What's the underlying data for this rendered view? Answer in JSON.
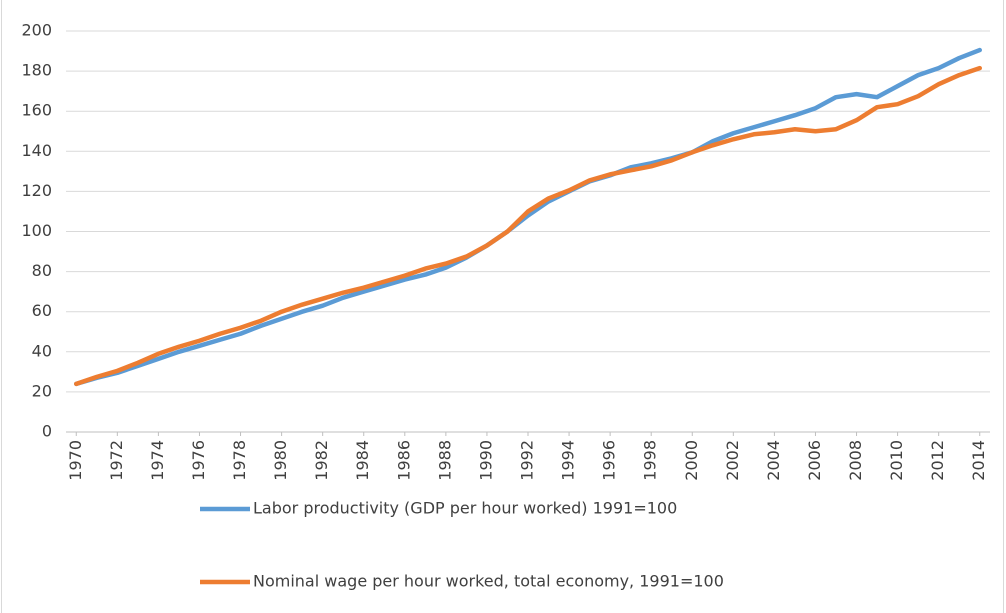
{
  "chart_data": {
    "type": "line",
    "x": [
      1970,
      1971,
      1972,
      1973,
      1974,
      1975,
      1976,
      1977,
      1978,
      1979,
      1980,
      1981,
      1982,
      1983,
      1984,
      1985,
      1986,
      1987,
      1988,
      1989,
      1990,
      1991,
      1992,
      1993,
      1994,
      1995,
      1996,
      1997,
      1998,
      1999,
      2000,
      2001,
      2002,
      2003,
      2004,
      2005,
      2006,
      2007,
      2008,
      2009,
      2010,
      2011,
      2012,
      2013,
      2014
    ],
    "xlim": [
      1969.5,
      2014.5
    ],
    "xticks": [
      1970,
      1972,
      1974,
      1976,
      1978,
      1980,
      1982,
      1984,
      1986,
      1988,
      1990,
      1992,
      1994,
      1996,
      1998,
      2000,
      2002,
      2004,
      2006,
      2008,
      2010,
      2012,
      2014
    ],
    "ylim": [
      0,
      200
    ],
    "yticks": [
      0,
      20,
      40,
      60,
      80,
      100,
      120,
      140,
      160,
      180,
      200
    ],
    "grid": true,
    "legend": "bottom",
    "series": [
      {
        "name": "Labor productivity (GDP per hour worked) 1991=100",
        "color": "#5b9bd5",
        "values": [
          24,
          27,
          29.5,
          33,
          36.5,
          40,
          43,
          46,
          49,
          53,
          56.5,
          60,
          63,
          67,
          70,
          73,
          76,
          78.5,
          82,
          87,
          93,
          100,
          108,
          115,
          120,
          125,
          128,
          132,
          134,
          136.5,
          139.5,
          145,
          149,
          152,
          155,
          158,
          161.5,
          167,
          168.5,
          167,
          172.5,
          178,
          181.5,
          186.5,
          190.5
        ]
      },
      {
        "name": "Nominal wage per hour worked, total economy, 1991=100",
        "color": "#ed7d31",
        "values": [
          24,
          27.5,
          30.5,
          34.5,
          39,
          42.5,
          45.5,
          49,
          52,
          55.5,
          60,
          63.5,
          66.5,
          69.5,
          72,
          75,
          78,
          81.5,
          84,
          87.5,
          93,
          100,
          110,
          116.5,
          120.5,
          125.5,
          128.5,
          130.5,
          132.5,
          135.5,
          139.5,
          143,
          146,
          148.5,
          149.5,
          151,
          150,
          151,
          155.5,
          162,
          163.5,
          167.5,
          173.5,
          178,
          181.5
        ]
      }
    ]
  }
}
